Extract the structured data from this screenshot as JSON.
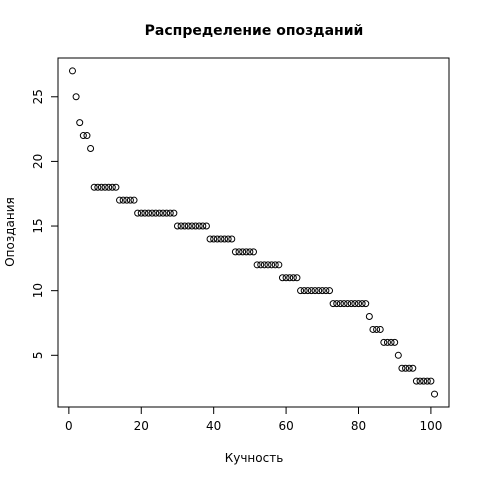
{
  "chart_data": {
    "type": "scatter",
    "title": "Распределение опозданий",
    "x_label": "Кучность",
    "y_label": "Опоздания",
    "x": [
      1,
      2,
      3,
      4,
      5,
      6,
      7,
      8,
      9,
      10,
      11,
      12,
      13,
      14,
      15,
      16,
      17,
      18,
      19,
      20,
      21,
      22,
      23,
      24,
      25,
      26,
      27,
      28,
      29,
      30,
      31,
      32,
      33,
      34,
      35,
      36,
      37,
      38,
      39,
      40,
      41,
      42,
      43,
      44,
      45,
      46,
      47,
      48,
      49,
      50,
      51,
      52,
      53,
      54,
      55,
      56,
      57,
      58,
      59,
      60,
      61,
      62,
      63,
      64,
      65,
      66,
      67,
      68,
      69,
      70,
      71,
      72,
      73,
      74,
      75,
      76,
      77,
      78,
      79,
      80,
      81,
      82,
      83,
      84,
      85,
      86,
      87,
      88,
      89,
      90,
      91,
      92,
      93,
      94,
      95,
      96,
      97,
      98,
      99,
      100,
      101
    ],
    "values": [
      27,
      25,
      23,
      22,
      22,
      21,
      18,
      18,
      18,
      18,
      18,
      18,
      18,
      17,
      17,
      17,
      17,
      17,
      16,
      16,
      16,
      16,
      16,
      16,
      16,
      16,
      16,
      16,
      16,
      15,
      15,
      15,
      15,
      15,
      15,
      15,
      15,
      15,
      14,
      14,
      14,
      14,
      14,
      14,
      14,
      13,
      13,
      13,
      13,
      13,
      13,
      12,
      12,
      12,
      12,
      12,
      12,
      12,
      11,
      11,
      11,
      11,
      11,
      10,
      10,
      10,
      10,
      10,
      10,
      10,
      10,
      10,
      9,
      9,
      9,
      9,
      9,
      9,
      9,
      9,
      9,
      9,
      8,
      7,
      7,
      7,
      6,
      6,
      6,
      6,
      5,
      4,
      4,
      4,
      4,
      3,
      3,
      3,
      3,
      3,
      2
    ],
    "color": "#000000",
    "xlim": [
      -3,
      105
    ],
    "ylim": [
      1,
      28
    ],
    "xticks": [
      0,
      20,
      40,
      60,
      80,
      100
    ],
    "yticks": [
      5,
      10,
      15,
      20,
      25
    ]
  }
}
